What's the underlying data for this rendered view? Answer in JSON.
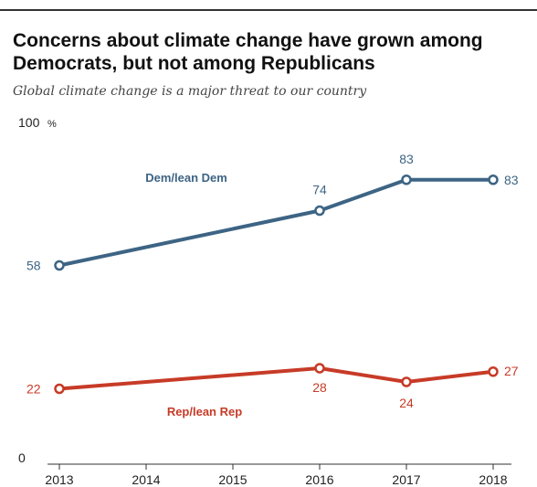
{
  "title": "Concerns about climate change have grown among Democrats, but not among Republicans",
  "subtitle": "Global climate change is a major threat to our country",
  "chart_data": {
    "type": "line",
    "x": [
      2013,
      2014,
      2015,
      2016,
      2017,
      2018
    ],
    "ylim": [
      0,
      100
    ],
    "y_tick_labels": [
      "0",
      "100"
    ],
    "y_unit": "%",
    "grid": false,
    "series": [
      {
        "name": "Dem/lean Dem",
        "color": "#3d6484",
        "points": [
          [
            2013,
            58
          ],
          [
            2016,
            74
          ],
          [
            2017,
            83
          ],
          [
            2018,
            83
          ]
        ],
        "labels": [
          "58",
          "74",
          "83",
          "83"
        ]
      },
      {
        "name": "Rep/lean Rep",
        "color": "#c73b27",
        "points": [
          [
            2013,
            22
          ],
          [
            2016,
            28
          ],
          [
            2017,
            24
          ],
          [
            2018,
            27
          ]
        ],
        "labels": [
          "22",
          "28",
          "24",
          "27"
        ]
      }
    ]
  }
}
